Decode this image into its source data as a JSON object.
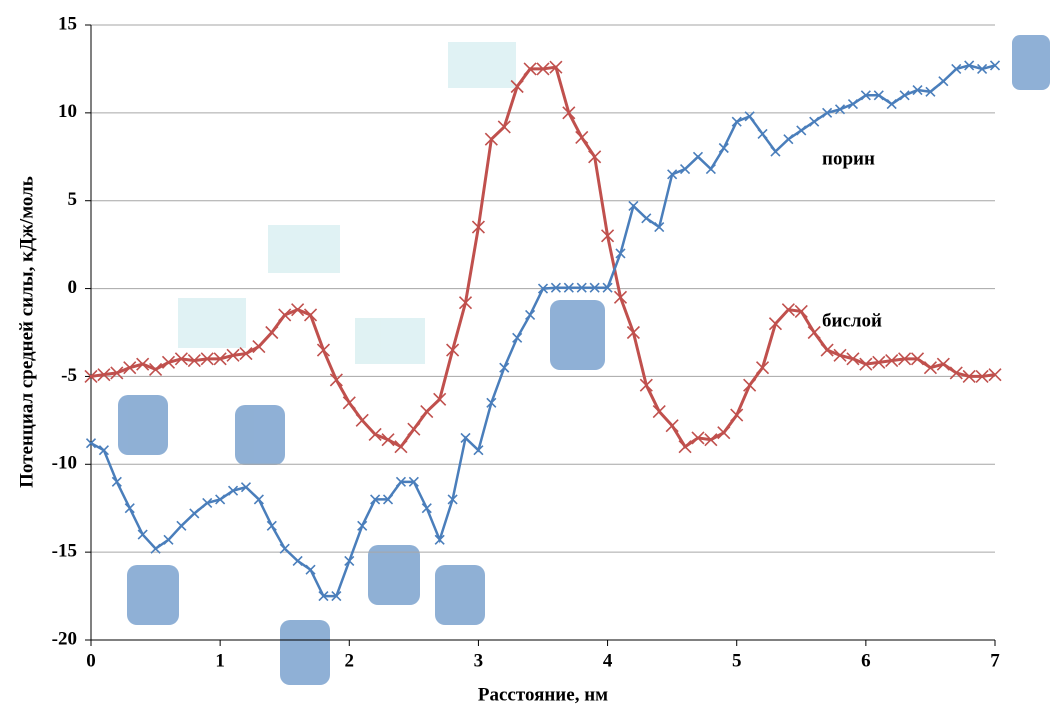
{
  "chart_data": {
    "type": "line",
    "x_label": "Расстояние, нм",
    "y_label": "Потенциал средней силы, кДж/моль",
    "x": [
      0,
      0.1,
      0.2,
      0.3,
      0.4,
      0.5,
      0.6,
      0.7,
      0.8,
      0.9,
      1,
      1.1,
      1.2,
      1.3,
      1.4,
      1.5,
      1.6,
      1.7,
      1.8,
      1.9,
      2,
      2.1,
      2.2,
      2.3,
      2.4,
      2.5,
      2.6,
      2.7,
      2.8,
      2.9,
      3,
      3.1,
      3.2,
      3.3,
      3.4,
      3.5,
      3.6,
      3.7,
      3.8,
      3.9,
      4,
      4.1,
      4.2,
      4.3,
      4.4,
      4.5,
      4.6,
      4.7,
      4.8,
      4.9,
      5,
      5.1,
      5.2,
      5.3,
      5.4,
      5.5,
      5.6,
      5.7,
      5.8,
      5.9,
      6,
      6.1,
      6.2,
      6.3,
      6.4,
      6.5,
      6.6,
      6.7,
      6.8,
      6.9,
      7
    ],
    "series": [
      {
        "name": "бислой",
        "color": "#c0504d",
        "values": [
          -5,
          -4.9,
          -4.8,
          -4.5,
          -4.3,
          -4.6,
          -4.2,
          -4,
          -4.1,
          -4,
          -4,
          -3.8,
          -3.7,
          -3.3,
          -2.5,
          -1.5,
          -1.2,
          -1.5,
          -3.5,
          -5.2,
          -6.5,
          -7.5,
          -8.3,
          -8.6,
          -9,
          -8,
          -7,
          -6.3,
          -3.5,
          -0.8,
          3.5,
          8.5,
          9.2,
          11.5,
          12.5,
          12.5,
          12.6,
          10,
          8.6,
          7.5,
          3,
          -0.5,
          -2.5,
          -5.5,
          -7,
          -7.8,
          -9,
          -8.5,
          -8.6,
          -8.2,
          -7.2,
          -5.5,
          -4.5,
          -2,
          -1.2,
          -1.3,
          -2.5,
          -3.5,
          -3.8,
          -4,
          -4.3,
          -4.2,
          -4.1,
          -4,
          -4,
          -4.5,
          -4.3,
          -4.8,
          -5,
          -5,
          -4.9
        ]
      },
      {
        "name": "порин",
        "color": "#4a7ebb",
        "values": [
          -8.8,
          -9.2,
          -11,
          -12.5,
          -14,
          -14.8,
          -14.3,
          -13.5,
          -12.8,
          -12.2,
          -12,
          -11.5,
          -11.3,
          -12,
          -13.5,
          -14.8,
          -15.5,
          -16,
          -17.5,
          -17.5,
          -15.5,
          -13.5,
          -12,
          -12,
          -11,
          -11,
          -12.5,
          -14.3,
          -12,
          -8.5,
          -9.2,
          -6.5,
          -4.5,
          -2.8,
          -1.5,
          0,
          0.05,
          0.05,
          0.05,
          0.05,
          0.05,
          2,
          4.7,
          4,
          3.5,
          6.5,
          6.8,
          7.5,
          6.8,
          8,
          9.5,
          9.8,
          8.8,
          7.8,
          8.5,
          9,
          9.5,
          10,
          10.2,
          10.5,
          11,
          11,
          10.5,
          11,
          11.3,
          11.2,
          11.8,
          12.5,
          12.7,
          12.5,
          12.7
        ]
      }
    ],
    "xlim": [
      0,
      7
    ],
    "xticks": [
      0,
      1,
      2,
      3,
      4,
      5,
      6,
      7
    ],
    "ylim": [
      -20,
      15
    ],
    "yticks": [
      -20,
      -15,
      -10,
      -5,
      0,
      5,
      10,
      15
    ],
    "grid": true
  }
}
